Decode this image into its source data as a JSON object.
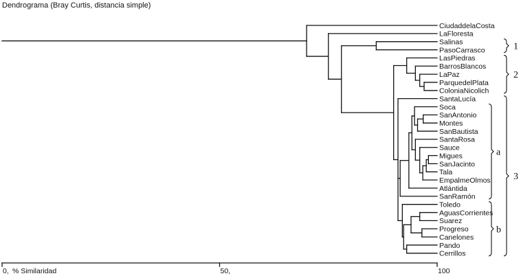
{
  "title": "Dendrograma (Bray Curtis, distancia simple)",
  "axis": {
    "label": "% Similaridad",
    "ticks": [
      {
        "value": 0,
        "text": "0,"
      },
      {
        "value": 50,
        "text": "50,"
      },
      {
        "value": 100,
        "text": "100"
      }
    ]
  },
  "leaves": [
    "CiudaddelaCosta",
    "LaFloresta",
    "Salinas",
    "PasoCarrasco",
    "LasPiedras",
    "BarrosBlancos",
    "LaPaz",
    "ParquedelPlata",
    "ColoniaNicolich",
    "SantaLucía",
    "Soca",
    "SanAntonio",
    "Montes",
    "SanBautista",
    "SantaRosa",
    "Sauce",
    "Migues",
    "SanJacinto",
    "Tala",
    "EmpalmeOlmos",
    "Atlántida",
    "SanRamón",
    "Toledo",
    "AguasCorrientes",
    "Suarez",
    "Progreso",
    "Canelones",
    "Pando",
    "Cerrillos"
  ],
  "tree": {
    "sim": 0,
    "children": [
      {
        "sim": 70,
        "children": [
          {
            "leaf": 0
          },
          {
            "sim": 75,
            "children": [
              {
                "leaf": 1
              },
              {
                "sim": 78,
                "children": [
                  {
                    "sim": 86,
                    "children": [
                      {
                        "leaf": 2
                      },
                      {
                        "leaf": 3
                      }
                    ]
                  },
                  {
                    "sim": 90,
                    "children": [
                      {
                        "sim": 93,
                        "children": [
                          {
                            "leaf": 4
                          },
                          {
                            "sim": 95,
                            "children": [
                              {
                                "leaf": 5
                              },
                              {
                                "sim": 96,
                                "children": [
                                  {
                                    "leaf": 6
                                  },
                                  {
                                    "sim": 97,
                                    "children": [
                                      {
                                        "leaf": 7
                                      },
                                      {
                                        "leaf": 8
                                      }
                                    ]
                                  }
                                ]
                              }
                            ]
                          }
                        ]
                      },
                      {
                        "sim": 91,
                        "children": [
                          {
                            "leaf": 9
                          },
                          {
                            "sim": 91.5,
                            "children": [
                              {
                                "sim": 93.5,
                                "children": [
                                  {
                                    "sim": 94.2,
                                    "children": [
                                      {
                                        "sim": 94.8,
                                        "children": [
                                          {
                                            "leaf": 10
                                          },
                                          {
                                            "sim": 95.5,
                                            "children": [
                                              {
                                                "sim": 96.8,
                                                "children": [
                                                  {
                                                    "leaf": 11
                                                  },
                                                  {
                                                    "leaf": 12
                                                  }
                                                ]
                                              },
                                              {
                                                "leaf": 13
                                              }
                                            ]
                                          }
                                        ]
                                      },
                                      {
                                        "sim": 95,
                                        "children": [
                                          {
                                            "leaf": 14
                                          },
                                          {
                                            "sim": 96,
                                            "children": [
                                              {
                                                "leaf": 15
                                              },
                                              {
                                                "sim": 96.7,
                                                "children": [
                                                  {
                                                    "sim": 97.5,
                                                    "children": [
                                                      {
                                                        "sim": 98,
                                                        "children": [
                                                          {
                                                            "leaf": 16
                                                          },
                                                          {
                                                            "leaf": 17
                                                          }
                                                        ]
                                                      },
                                                      {
                                                        "leaf": 18
                                                      }
                                                    ]
                                                  },
                                                  {
                                                    "leaf": 19
                                                  }
                                                ]
                                              }
                                            ]
                                          }
                                        ]
                                      }
                                    ]
                                  },
                                  {
                                    "leaf": 20
                                  }
                                ]
                              },
                              {
                                "leaf": 21
                              }
                            ]
                          },
                          {
                            "sim": 92,
                            "children": [
                              {
                                "leaf": 22
                              },
                              {
                                "sim": 92.3,
                                "children": [
                                  {
                                    "sim": 94,
                                    "children": [
                                      {
                                        "sim": 96,
                                        "children": [
                                          {
                                            "leaf": 23
                                          },
                                          {
                                            "leaf": 24
                                          }
                                        ]
                                      },
                                      {
                                        "sim": 96.5,
                                        "children": [
                                          {
                                            "leaf": 25
                                          },
                                          {
                                            "leaf": 26
                                          }
                                        ]
                                      }
                                    ]
                                  },
                                  {
                                    "sim": 93,
                                    "children": [
                                      {
                                        "leaf": 27
                                      },
                                      {
                                        "leaf": 28
                                      }
                                    ]
                                  }
                                ]
                              }
                            ]
                          }
                        ]
                      }
                    ]
                  }
                ]
              }
            ]
          }
        ]
      }
    ]
  },
  "groups": [
    {
      "label": "1",
      "from": 2,
      "to": 3,
      "level": 1
    },
    {
      "label": "2",
      "from": 4,
      "to": 8,
      "level": 1
    },
    {
      "label": "3",
      "from": 9,
      "to": 28,
      "level": 1
    },
    {
      "label": "a",
      "from": 10,
      "to": 21,
      "level": 0
    },
    {
      "label": "b",
      "from": 22,
      "to": 28,
      "level": 0
    }
  ]
}
